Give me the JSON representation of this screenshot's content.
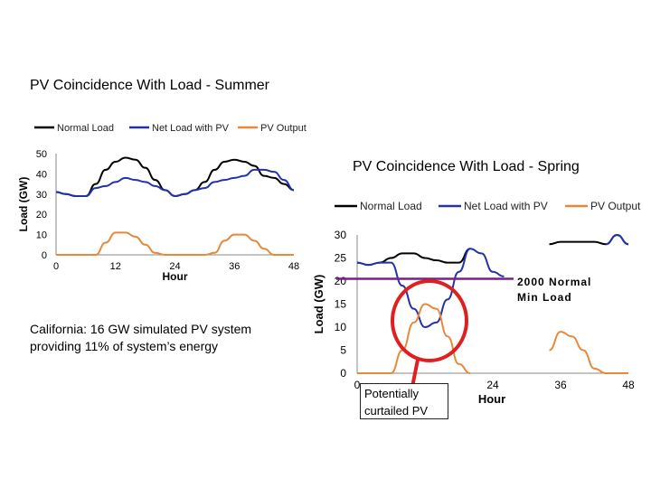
{
  "slide": {
    "caption": "California:  16 GW simulated PV system providing 11% of system’s energy",
    "min_load_label_line1": "2000 Normal",
    "min_load_label_line2": "Min Load",
    "curtailed_label": "Potentially curtailed PV"
  },
  "colors": {
    "normal_load": "#000000",
    "net_load": "#2233aa",
    "pv_output": "#e8883a",
    "min_load_line": "#7a1e8c",
    "curtail_circle": "#e02020"
  },
  "chart_data": [
    {
      "type": "line",
      "title": "PV Coincidence With Load - Summer",
      "xlabel": "Hour",
      "ylabel": "Load (GW)",
      "xlim": [
        0,
        48
      ],
      "ylim": [
        0,
        50
      ],
      "xticks": [
        0,
        12,
        24,
        36,
        48
      ],
      "yticks": [
        0,
        10,
        20,
        30,
        40,
        50
      ],
      "grid": false,
      "legend_position": "top",
      "x": [
        0,
        2,
        4,
        6,
        8,
        10,
        12,
        14,
        16,
        18,
        20,
        22,
        24,
        26,
        28,
        30,
        32,
        34,
        36,
        38,
        40,
        42,
        44,
        46,
        48
      ],
      "series": [
        {
          "name": "Normal Load",
          "values": [
            31,
            30,
            29,
            29,
            35,
            42,
            46,
            48,
            47,
            43,
            37,
            32,
            29,
            30,
            32,
            36,
            42,
            46,
            47,
            46,
            44,
            39,
            38,
            35,
            32
          ]
        },
        {
          "name": "Net Load with PV",
          "values": [
            31,
            30,
            29,
            29,
            33,
            34,
            36,
            38,
            37,
            36,
            34,
            32,
            29,
            30,
            32,
            33,
            36,
            37,
            38,
            39,
            42,
            42,
            41,
            37,
            32
          ]
        },
        {
          "name": "PV Output",
          "values": [
            0,
            0,
            0,
            0,
            0,
            6,
            11,
            11,
            9,
            5,
            1,
            0,
            0,
            0,
            0,
            0,
            1,
            7,
            10,
            10,
            7,
            3,
            0,
            0,
            0
          ]
        }
      ]
    },
    {
      "type": "line",
      "title": "PV Coincidence With Load - Spring",
      "xlabel": "Hour",
      "ylabel": "Load (GW)",
      "xlim": [
        0,
        48
      ],
      "ylim": [
        0,
        30
      ],
      "xticks": [
        0,
        24,
        36,
        48
      ],
      "xtick_labels": [
        "0",
        "24",
        "36",
        "48"
      ],
      "yticks": [
        0,
        5,
        10,
        15,
        20,
        25,
        30
      ],
      "grid": false,
      "legend_position": "top",
      "reference_line": {
        "name": "2000 Normal Min Load",
        "value": 20.5
      },
      "x": [
        0,
        2,
        4,
        6,
        8,
        10,
        12,
        14,
        16,
        18,
        20,
        22,
        24,
        26,
        28,
        30,
        32,
        34,
        36,
        38,
        40,
        42,
        44,
        46,
        48
      ],
      "series": [
        {
          "name": "Normal Load",
          "values": [
            24,
            23.5,
            24,
            25,
            26,
            26,
            25,
            24.5,
            24,
            24,
            27,
            null,
            null,
            null,
            null,
            null,
            null,
            28,
            28.5,
            28.5,
            28.5,
            28.5,
            28,
            30,
            28
          ]
        },
        {
          "name": "Net Load with PV",
          "values": [
            24,
            23.5,
            24,
            24,
            19,
            14,
            10,
            11,
            16,
            22,
            27,
            26,
            22,
            21,
            null,
            null,
            null,
            null,
            null,
            null,
            null,
            null,
            28,
            30,
            28
          ]
        },
        {
          "name": "PV Output",
          "values": [
            0,
            0,
            0,
            0,
            5,
            11,
            15,
            14,
            8,
            2,
            0,
            null,
            null,
            null,
            null,
            null,
            null,
            5,
            9,
            8,
            5,
            1,
            0,
            0,
            0
          ]
        }
      ]
    }
  ]
}
